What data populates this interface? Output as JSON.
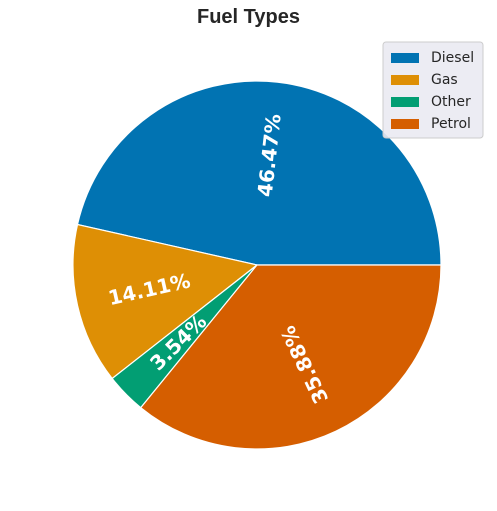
{
  "chart_data": {
    "type": "pie",
    "title": "Fuel Types",
    "categories": [
      "Diesel",
      "Gas",
      "Other",
      "Petrol"
    ],
    "values": [
      46.47,
      14.11,
      3.54,
      35.88
    ],
    "labels": [
      "46.47%",
      "14.11%",
      "3.54%",
      "35.88%"
    ],
    "colors": [
      "#0173b2",
      "#de8f05",
      "#029e73",
      "#d55e00"
    ],
    "legend_position": "top-right",
    "label_color": "#ffffff",
    "label_rotation": "radial"
  }
}
